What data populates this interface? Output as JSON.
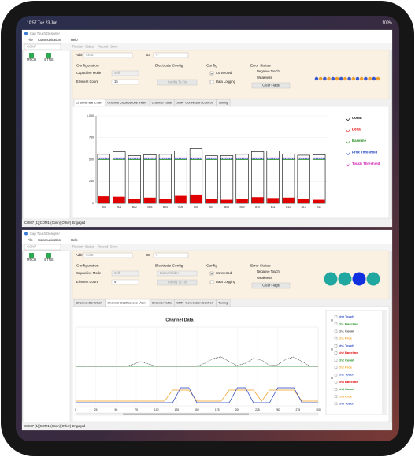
{
  "status_bar": {
    "time": "10:57 Tue 23 Jun",
    "battery": "100%"
  },
  "windows": [
    {
      "title": "Cap Touch Designer",
      "menu": [
        "File",
        "Communication",
        "Help"
      ],
      "toolbar": [
        "Restart",
        "Status",
        "Reload",
        "Save"
      ],
      "port": "COM7",
      "devices": [
        "MTCH",
        "BTNS"
      ],
      "address_label": "Addr",
      "address": "0x0B",
      "id_label": "ID",
      "id": "0",
      "configuration": {
        "heading": "Configuration",
        "mode_label": "Capacitive Mode",
        "mode_value": "Self",
        "count_label": "Element Count",
        "count_value": "15"
      },
      "electrode": {
        "heading": "Electrode Config",
        "button": "Config To Fix"
      },
      "config": {
        "heading": "Config",
        "connected": "Connected",
        "logging": "Data Logging"
      },
      "error": {
        "heading": "Error Status",
        "items": [
          "Negative Touch",
          "Weakness"
        ],
        "button": "Clear Flags"
      },
      "tabs": [
        "Channel Bar Chart",
        "Channel Oscilloscope View",
        "Channel Table",
        "SNR",
        "Conversion Control",
        "Tuning"
      ],
      "status": "COM7 (1)(COM1)(Conn)(Other) Engaged"
    },
    {
      "title": "Cap Touch Designer",
      "menu": [
        "File",
        "Communication",
        "Help"
      ],
      "toolbar": [
        "Restart",
        "Status",
        "Reload",
        "Save"
      ],
      "port": "COM7",
      "devices": [
        "MTCH",
        "BTNS"
      ],
      "address_label": "Addr",
      "address": "0x0B",
      "id_label": "ID",
      "id": "0",
      "configuration": {
        "heading": "Configuration",
        "mode_label": "Capacitive Mode",
        "mode_value": "Self",
        "count_label": "Element Count",
        "count_value": "4"
      },
      "electrode": {
        "heading": "Electrode Config",
        "value": "Button/Slider",
        "button": "Config To Fix"
      },
      "config": {
        "heading": "Config",
        "connected": "Connected",
        "logging": "Data Logging"
      },
      "error": {
        "heading": "Error Status",
        "items": [
          "Negative Touch",
          "Weakness"
        ],
        "button": "Clear Flags"
      },
      "tabs": [
        "Channel Bar Chart",
        "Channel Oscilloscope View",
        "Channel Table",
        "SNR",
        "Conversion Control",
        "Tuning"
      ],
      "status": "COM7 (1)(COM1)(Conn)(Other) Engaged"
    }
  ],
  "chart_data": [
    {
      "type": "bar",
      "categories": [
        "B00",
        "B01",
        "B02",
        "B03",
        "B04",
        "B05",
        "B06",
        "B07",
        "B08",
        "B09",
        "B10",
        "B11",
        "B12",
        "B13",
        "B14"
      ],
      "series": [
        {
          "name": "Count",
          "color": "#000000",
          "values": [
            560,
            590,
            545,
            555,
            560,
            600,
            625,
            545,
            545,
            560,
            590,
            600,
            565,
            550,
            555
          ]
        },
        {
          "name": "Delta",
          "color": "#e00000",
          "values": [
            80,
            75,
            50,
            65,
            45,
            85,
            100,
            50,
            40,
            45,
            70,
            60,
            65,
            45,
            40
          ]
        },
        {
          "name": "Baseline",
          "color": "#1a8a1a",
          "values": [
            500,
            500,
            500,
            500,
            500,
            500,
            500,
            500,
            500,
            500,
            500,
            500,
            500,
            500,
            500
          ]
        },
        {
          "name": "Prox Threshold",
          "color": "#1f3fbf",
          "values": [
            510,
            510,
            510,
            510,
            510,
            510,
            510,
            510,
            510,
            510,
            510,
            510,
            510,
            510,
            510
          ]
        },
        {
          "name": "Touch Threshold",
          "color": "#d020b0",
          "values": [
            520,
            520,
            520,
            520,
            520,
            520,
            520,
            520,
            520,
            520,
            520,
            520,
            520,
            520,
            520
          ]
        }
      ],
      "ylim": [
        0,
        1000
      ],
      "yticks": [
        0,
        250,
        500,
        750,
        {
          "value": 1000,
          "label": "1,000"
        }
      ],
      "grid": true
    },
    {
      "type": "line",
      "title": "Channel Data",
      "x": [
        0,
        10,
        20,
        30,
        40,
        50,
        60,
        70,
        80,
        90,
        100,
        110,
        120,
        130,
        140,
        150,
        160,
        170,
        180,
        190,
        200,
        210,
        220,
        230,
        240,
        250,
        260,
        270,
        280,
        290,
        300
      ],
      "series": [
        {
          "name": "ch1 Baseline",
          "color": "#1a8a1a",
          "values": [
            500,
            500,
            500,
            500,
            500,
            500,
            500,
            500,
            500,
            500,
            500,
            500,
            500,
            500,
            500,
            500,
            500,
            500,
            500,
            500,
            500,
            500,
            500,
            500,
            500,
            500,
            500,
            500,
            500,
            500,
            500
          ]
        },
        {
          "name": "ch1 Count",
          "color": "#505050",
          "values": [
            500,
            500,
            500,
            500,
            500,
            500,
            500,
            520,
            560,
            530,
            500,
            500,
            500,
            500,
            500,
            500,
            540,
            600,
            620,
            560,
            510,
            540,
            600,
            580,
            510,
            520,
            590,
            620,
            560,
            500,
            500
          ]
        },
        {
          "name": "ch1 Prox",
          "color": "#f0a020",
          "values": [
            60,
            60,
            60,
            60,
            60,
            60,
            60,
            60,
            60,
            60,
            60,
            60,
            200,
            200,
            200,
            60,
            60,
            60,
            60,
            200,
            200,
            200,
            200,
            60,
            200,
            200,
            200,
            200,
            60,
            60,
            60
          ]
        },
        {
          "name": "ch1 Touch",
          "color": "#1f3fbf",
          "values": [
            40,
            40,
            40,
            40,
            40,
            40,
            40,
            40,
            40,
            40,
            40,
            40,
            40,
            230,
            230,
            40,
            40,
            40,
            40,
            40,
            230,
            230,
            40,
            40,
            40,
            230,
            230,
            230,
            40,
            40,
            40
          ]
        }
      ],
      "legend_extra": [
        {
          "name": "ch0 Touch",
          "color": "#1f3fbf"
        },
        {
          "name": "ch2 Baseline",
          "color": "#e00000"
        },
        {
          "name": "ch2 Count",
          "color": "#1a8a1a"
        },
        {
          "name": "ch2 Prox",
          "color": "#f0a020"
        },
        {
          "name": "ch2 Touch",
          "color": "#1f3fbf"
        },
        {
          "name": "ch3 Baseline",
          "color": "#e00000"
        },
        {
          "name": "ch3 Count",
          "color": "#1a8a1a"
        },
        {
          "name": "ch3 Prox",
          "color": "#f0a020"
        },
        {
          "name": "ch3 Touch",
          "color": "#1f3fbf"
        }
      ],
      "xlim": [
        0,
        300
      ],
      "xticks": [
        0,
        25,
        50,
        75,
        100,
        125,
        150,
        175,
        200,
        225,
        250,
        275,
        300
      ],
      "ylim": [
        0,
        1000
      ],
      "grid": true
    }
  ]
}
